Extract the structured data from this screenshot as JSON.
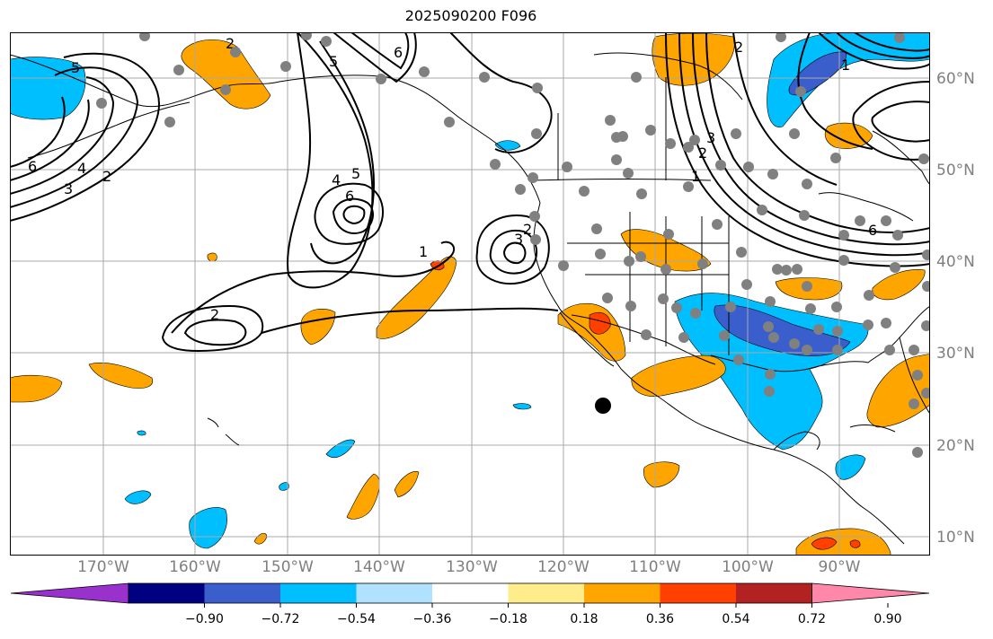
{
  "title": "2025090200 F096",
  "lon_labels": [
    "170°W",
    "160°W",
    "150°W",
    "140°W",
    "130°W",
    "120°W",
    "110°W",
    "100°W",
    "90°W"
  ],
  "lat_labels": [
    "60°N",
    "50°N",
    "40°N",
    "30°N",
    "20°N",
    "10°N"
  ],
  "colorbar": {
    "ticks": [
      "−0.90",
      "−0.72",
      "−0.54",
      "−0.36",
      "−0.18",
      "0.18",
      "0.36",
      "0.54",
      "0.72",
      "0.90"
    ],
    "colors": [
      "#9932cc",
      "#000080",
      "#3a5fcd",
      "#00bfff",
      "#b0e2ff",
      "#ffffff",
      "#ffec8b",
      "#ffa500",
      "#ff4000",
      "#b22222",
      "#ff88aa"
    ]
  },
  "contour_labels": [
    "5",
    "2",
    "6",
    "4",
    "3",
    "2",
    "4",
    "5",
    "6",
    "2",
    "1",
    "2",
    "3",
    "6",
    "5",
    "3",
    "2",
    "1",
    "6",
    "2",
    "1"
  ],
  "colors": {
    "orange": "#ffa500",
    "red": "#ff4000",
    "cyan": "#00bfff",
    "blue": "#3a5fcd"
  }
}
